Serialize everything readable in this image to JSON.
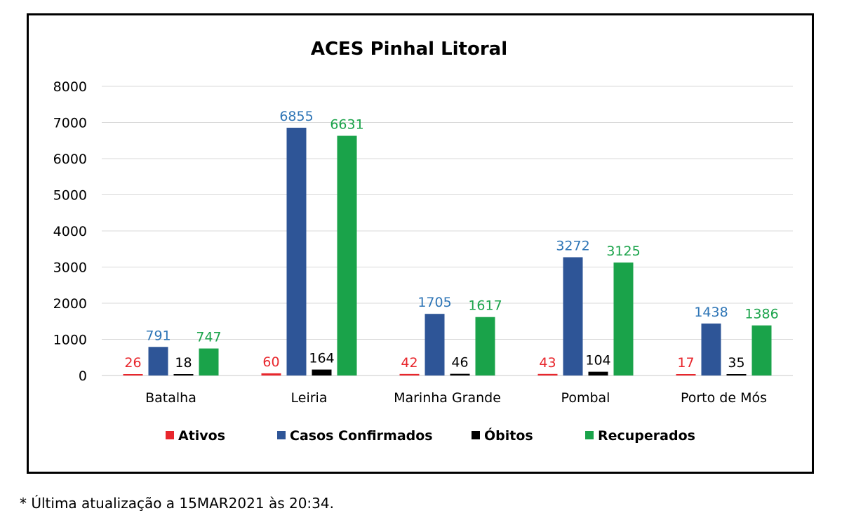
{
  "chart_data": {
    "type": "bar",
    "title": "ACES Pinhal Litoral",
    "categories": [
      "Batalha",
      "Leiria",
      "Marinha Grande",
      "Pombal",
      "Porto de Mós"
    ],
    "series": [
      {
        "name": "Ativos",
        "color": "#e8262c",
        "values": [
          26,
          60,
          42,
          43,
          17
        ]
      },
      {
        "name": "Casos Confirmados",
        "color": "#2e5597",
        "values": [
          791,
          6855,
          1705,
          3272,
          1438
        ]
      },
      {
        "name": "Óbitos",
        "color": "#000000",
        "values": [
          18,
          164,
          46,
          104,
          35
        ]
      },
      {
        "name": "Recuperados",
        "color": "#1aa34a",
        "values": [
          747,
          6631,
          1617,
          3125,
          1386
        ]
      }
    ],
    "label_colors": [
      "#e8262c",
      "#2e75b6",
      "#000000",
      "#1aa34a"
    ],
    "ylim": [
      0,
      8000
    ],
    "yticks": [
      0,
      1000,
      2000,
      3000,
      4000,
      5000,
      6000,
      7000,
      8000
    ],
    "grid": true,
    "legend_position": "bottom"
  },
  "footnote": "* Última atualização a 15MAR2021 às 20:34."
}
